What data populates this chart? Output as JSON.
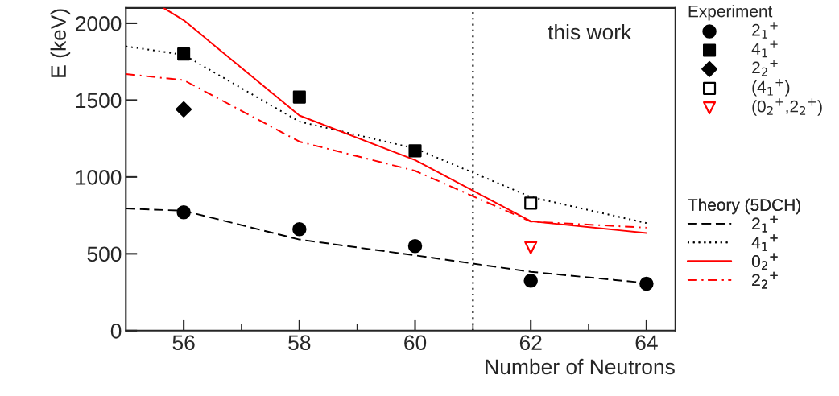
{
  "chart_data": {
    "type": "line",
    "xlabel": "Number of Neutrons",
    "ylabel": "E (keV)",
    "legend_title": [
      "Experiment",
      "Theory (5DCH)"
    ],
    "xlim": [
      55,
      64.5
    ],
    "xticks": [
      56,
      58,
      60,
      62,
      64
    ],
    "ylim": [
      0,
      2100
    ],
    "yticks": [
      0,
      500,
      1000,
      1500,
      2000
    ],
    "grid": false,
    "legend": "right",
    "ref_lines": [
      {
        "axis": "x",
        "value": 61,
        "color": "#000000",
        "line_style": "dotted"
      }
    ],
    "annotations": [
      "this work"
    ],
    "series": [
      {
        "type": "scatter",
        "name": "2$_{1}$$^{+}$",
        "color": "#000000",
        "marker": "circle",
        "x": [
          56,
          58,
          60,
          62,
          64
        ],
        "values": [
          770,
          660,
          550,
          325,
          305
        ]
      },
      {
        "type": "scatter",
        "name": "4$_{1}$$^{+}$",
        "color": "#000000",
        "marker": "square",
        "x": [
          56,
          58,
          60
        ],
        "values": [
          1800,
          1520,
          1170
        ]
      },
      {
        "type": "scatter",
        "name": "2$_{2}$$^{+}$",
        "color": "#000000",
        "marker": "diamond",
        "x": [
          56
        ],
        "values": [
          1440
        ]
      },
      {
        "type": "scatter",
        "name": "(4$_{1}$$^{+}$)",
        "color": "#000000",
        "marker": "square",
        "colors": [
          "#ffffff"
        ],
        "x": [
          62
        ],
        "values": [
          830
        ]
      },
      {
        "type": "scatter",
        "name": "(0$_{2}$$^{+}$,2$_{2}$$^{+}$)",
        "color": "#ff0000",
        "marker": "triangle",
        "colors": [
          "#ffffff"
        ],
        "x": [
          62
        ],
        "values": [
          540
        ]
      },
      {
        "name": "2$_{1}$$^{+}$",
        "color": "#000000",
        "line_style": "dashed",
        "x": [
          55,
          56,
          58,
          60,
          62,
          64
        ],
        "values": [
          795,
          780,
          593,
          490,
          383,
          310
        ]
      },
      {
        "name": "4$_{1}$$^{+}$",
        "color": "#000000",
        "line_style": "dotted",
        "x": [
          55,
          56,
          58,
          60,
          62,
          64
        ],
        "values": [
          1850,
          1795,
          1360,
          1186,
          870,
          700
        ]
      },
      {
        "name": "0$_{2}$$^{+}$",
        "color": "#ff0000",
        "line_style": "solid",
        "x": [
          55.65,
          56,
          58,
          60,
          62,
          64
        ],
        "values": [
          2100,
          2020,
          1400,
          1110,
          712,
          635
        ]
      },
      {
        "name": "2$_{2}$$^{+}$",
        "color": "#ff0000",
        "line_style": "dashdot",
        "x": [
          55,
          56,
          58,
          60,
          62,
          64
        ],
        "values": [
          1670,
          1630,
          1230,
          1040,
          710,
          670
        ]
      }
    ]
  }
}
